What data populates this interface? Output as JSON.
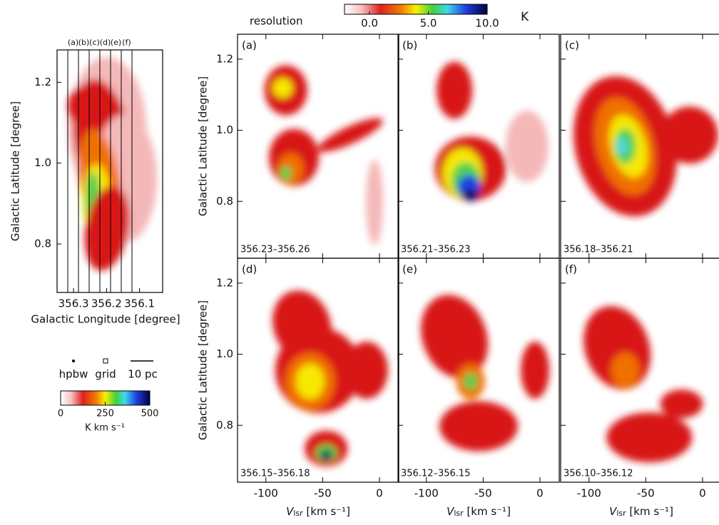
{
  "chart_data": [
    {
      "type": "heatmap",
      "xlabel": "Galactic Longitude [degree]",
      "ylabel": "Galactic Latitude [degree]",
      "xlim": [
        356.35,
        356.03
      ],
      "xticks": [
        356.3,
        356.2,
        356.1
      ],
      "ylim": [
        0.68,
        1.28
      ],
      "yticks": [
        {
          "value": 0.8,
          "label": "0.8"
        },
        {
          "value": 1.0,
          "label": "1.0"
        },
        {
          "value": 1.2,
          "label": "1.2"
        }
      ],
      "slices": [
        "(a)",
        "(b)",
        "(c)",
        "(d)",
        "(e)",
        "(f)"
      ],
      "legend": [
        "hpbw",
        "grid",
        "10 pc"
      ],
      "colorbar": {
        "label": "K km s⁻¹",
        "lim": [
          0,
          500
        ],
        "ticks": [
          0,
          250,
          500
        ]
      }
    },
    {
      "type": "heatmap",
      "xlabel_v": "V",
      "xlabel_sub": "lsr",
      "xlabel_unit": " [km s⁻¹]",
      "ylabel": "Galactic Latitude [degree]",
      "xlim": [
        -125,
        17
      ],
      "xticks": [
        -100,
        -50,
        0
      ],
      "ylim": [
        0.64,
        1.27
      ],
      "yticks": [
        {
          "value": 0.8,
          "label": "0.8"
        },
        {
          "value": 1.0,
          "label": "1.0"
        },
        {
          "value": 1.2,
          "label": "1.2"
        }
      ],
      "panels": [
        {
          "label": "(a)",
          "range": "356.23–356.26"
        },
        {
          "label": "(b)",
          "range": "356.21–356.23"
        },
        {
          "label": "(c)",
          "range": "356.18–356.21"
        },
        {
          "label": "(d)",
          "range": "356.15–356.18"
        },
        {
          "label": "(e)",
          "range": "356.12–356.15"
        },
        {
          "label": "(f)",
          "range": "356.10–356.12"
        }
      ],
      "beam_label": "resolution",
      "colorbar": {
        "label": "K",
        "lim": [
          0,
          10
        ],
        "ticks": [
          {
            "value": 0,
            "label": "0.0"
          },
          {
            "value": 5,
            "label": "5.0"
          },
          {
            "value": 10,
            "label": "10.0"
          }
        ]
      }
    }
  ]
}
